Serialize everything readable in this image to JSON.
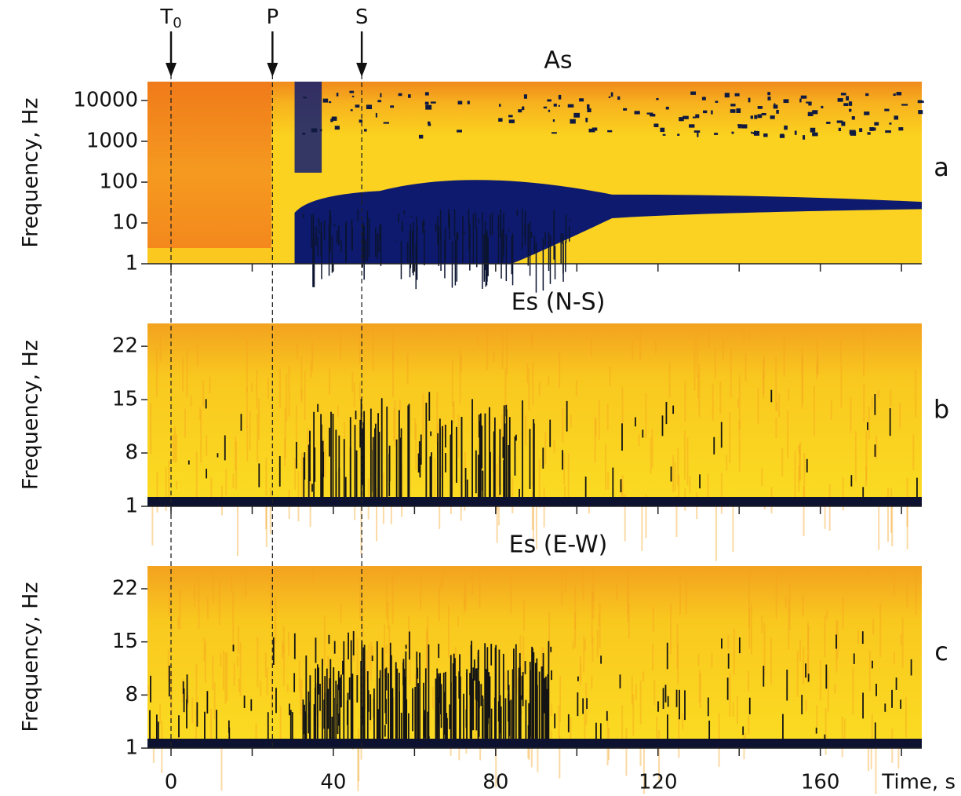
{
  "events": [
    {
      "label": "T",
      "subscript": "0",
      "value": 0
    },
    {
      "label": "P",
      "value": 25
    },
    {
      "label": "S",
      "value": 47
    }
  ],
  "chart_data": [
    {
      "type": "spectrogram",
      "title": "As",
      "panel_label": "a",
      "y_label": "Frequency, Hz",
      "log_y": true,
      "xlim": [
        -5.8,
        185
      ],
      "ylim": [
        1,
        29000
      ],
      "yticks": [
        1,
        10,
        100,
        1000,
        10000
      ]
    },
    {
      "type": "spectrogram",
      "title": "Es (N-S)",
      "panel_label": "b",
      "y_label": "Frequency, Hz",
      "log_y": false,
      "xlim": [
        -5.8,
        185
      ],
      "ylim": [
        1,
        25
      ],
      "yticks": [
        1,
        8,
        15,
        22
      ]
    },
    {
      "type": "spectrogram",
      "title": "Es (E-W)",
      "panel_label": "c",
      "y_label": "Frequency, Hz",
      "x_label": "Time, s",
      "log_y": false,
      "xlim": [
        -5.8,
        185
      ],
      "ylim": [
        1,
        25
      ],
      "yticks": [
        1,
        8,
        15,
        22
      ],
      "xticks": [
        0,
        40,
        80,
        120,
        160
      ],
      "x_minor_ticks": [
        20,
        60,
        100,
        140,
        180
      ]
    }
  ]
}
